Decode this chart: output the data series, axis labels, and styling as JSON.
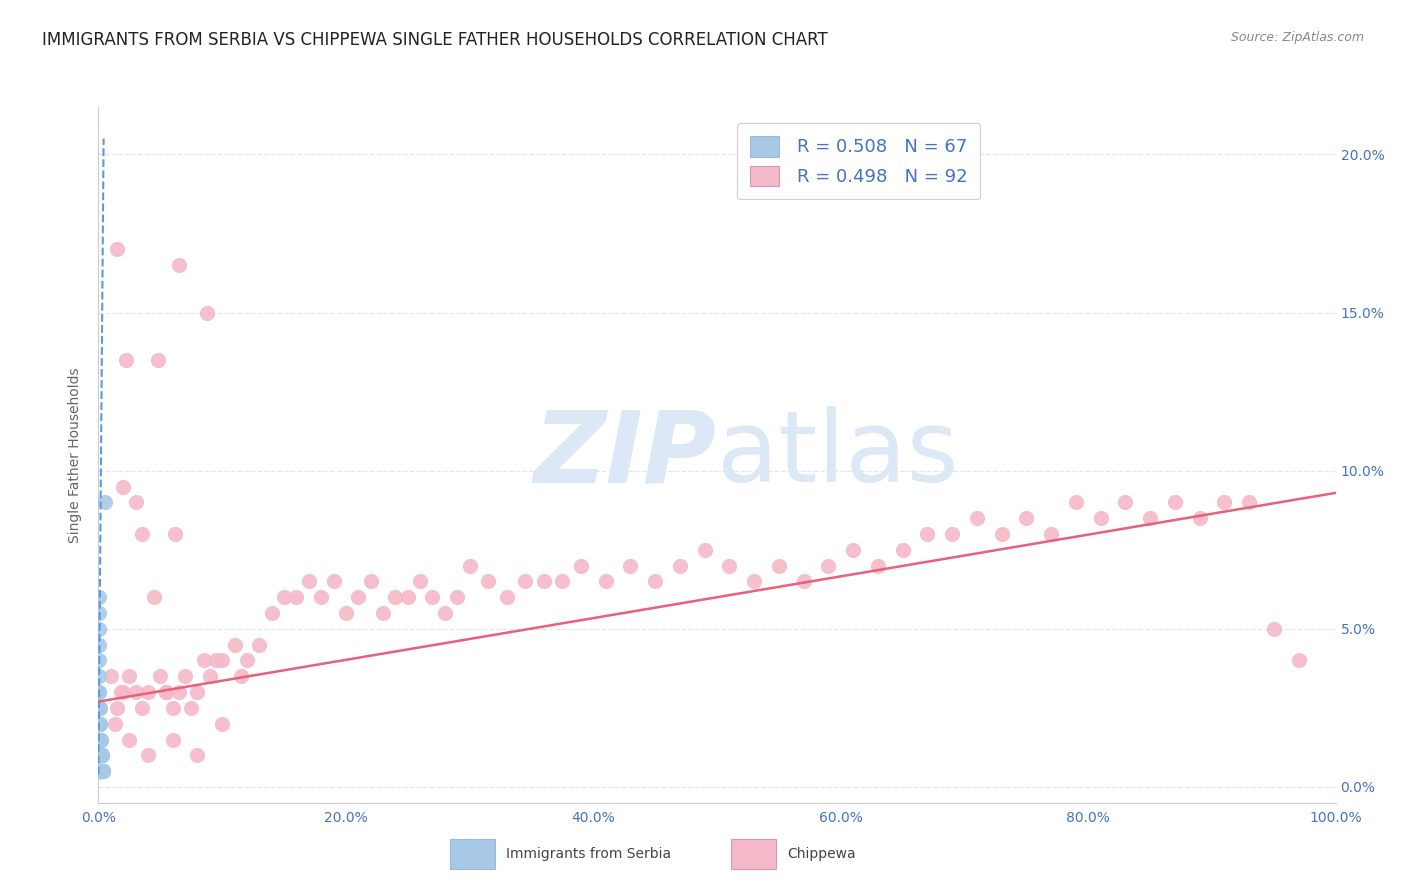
{
  "title": "IMMIGRANTS FROM SERBIA VS CHIPPEWA SINGLE FATHER HOUSEHOLDS CORRELATION CHART",
  "source": "Source: ZipAtlas.com",
  "ylabel": "Single Father Households",
  "legend_r": [
    0.508,
    0.498
  ],
  "legend_n": [
    67,
    92
  ],
  "serbia_color": "#a8c8e8",
  "serbia_edge_color": "#7aaad0",
  "chippewa_color": "#f5b8c8",
  "chippewa_edge_color": "#e890a8",
  "serbia_line_color": "#5b9bd5",
  "chippewa_line_color": "#e8607a",
  "watermark_zip": "ZIP",
  "watermark_atlas": "atlas",
  "watermark_color": "#dce8f5",
  "xlim": [
    0.0,
    1.0
  ],
  "ylim": [
    -0.005,
    0.215
  ],
  "yticks": [
    0.0,
    0.05,
    0.1,
    0.15,
    0.2
  ],
  "xticks": [
    0.0,
    0.2,
    0.4,
    0.6,
    0.8,
    1.0
  ],
  "serbia_x": [
    0.0002,
    0.0002,
    0.0002,
    0.0003,
    0.0003,
    0.0003,
    0.0003,
    0.0004,
    0.0004,
    0.0004,
    0.0005,
    0.0005,
    0.0005,
    0.0006,
    0.0006,
    0.0007,
    0.0007,
    0.0008,
    0.0008,
    0.0009,
    0.001,
    0.001,
    0.0012,
    0.0012,
    0.0013,
    0.0015,
    0.0015,
    0.0018,
    0.002,
    0.002,
    0.0022,
    0.0025,
    0.0025,
    0.0028,
    0.003,
    0.003,
    0.0033,
    0.0035,
    0.0038,
    0.004,
    0.0003,
    0.0004,
    0.0005,
    0.0006,
    0.0007,
    0.0008,
    0.0009,
    0.001,
    0.0012,
    0.0015,
    0.0018,
    0.002,
    0.0025,
    0.003,
    0.0001,
    0.0001,
    0.0001,
    0.0001,
    0.0001,
    0.0001,
    0.0001,
    0.0001,
    0.0001,
    0.0001,
    0.0001,
    0.0001,
    0.005
  ],
  "serbia_y": [
    0.005,
    0.01,
    0.015,
    0.005,
    0.01,
    0.015,
    0.02,
    0.005,
    0.01,
    0.02,
    0.005,
    0.01,
    0.02,
    0.005,
    0.01,
    0.005,
    0.015,
    0.005,
    0.015,
    0.005,
    0.005,
    0.01,
    0.005,
    0.01,
    0.005,
    0.005,
    0.01,
    0.005,
    0.005,
    0.01,
    0.005,
    0.005,
    0.01,
    0.005,
    0.005,
    0.01,
    0.005,
    0.005,
    0.005,
    0.005,
    0.025,
    0.025,
    0.03,
    0.025,
    0.02,
    0.02,
    0.02,
    0.025,
    0.02,
    0.015,
    0.015,
    0.015,
    0.01,
    0.01,
    0.005,
    0.01,
    0.015,
    0.02,
    0.025,
    0.03,
    0.035,
    0.04,
    0.045,
    0.05,
    0.055,
    0.06,
    0.09
  ],
  "chippewa_x": [
    0.01,
    0.015,
    0.018,
    0.02,
    0.025,
    0.03,
    0.035,
    0.04,
    0.05,
    0.055,
    0.06,
    0.065,
    0.07,
    0.08,
    0.085,
    0.09,
    0.095,
    0.1,
    0.11,
    0.115,
    0.12,
    0.13,
    0.14,
    0.15,
    0.16,
    0.17,
    0.18,
    0.19,
    0.2,
    0.21,
    0.22,
    0.23,
    0.24,
    0.25,
    0.26,
    0.27,
    0.28,
    0.29,
    0.3,
    0.315,
    0.33,
    0.345,
    0.36,
    0.375,
    0.39,
    0.41,
    0.43,
    0.45,
    0.47,
    0.49,
    0.51,
    0.53,
    0.55,
    0.57,
    0.59,
    0.61,
    0.63,
    0.65,
    0.67,
    0.69,
    0.71,
    0.73,
    0.75,
    0.77,
    0.79,
    0.81,
    0.83,
    0.85,
    0.87,
    0.89,
    0.91,
    0.93,
    0.95,
    0.97,
    0.013,
    0.025,
    0.04,
    0.06,
    0.08,
    0.1,
    0.02,
    0.035,
    0.055,
    0.075,
    0.03,
    0.045,
    0.015,
    0.022,
    0.048,
    0.065,
    0.088,
    0.062
  ],
  "chippewa_y": [
    0.035,
    0.025,
    0.03,
    0.03,
    0.035,
    0.03,
    0.025,
    0.03,
    0.035,
    0.03,
    0.025,
    0.03,
    0.035,
    0.03,
    0.04,
    0.035,
    0.04,
    0.04,
    0.045,
    0.035,
    0.04,
    0.045,
    0.055,
    0.06,
    0.06,
    0.065,
    0.06,
    0.065,
    0.055,
    0.06,
    0.065,
    0.055,
    0.06,
    0.06,
    0.065,
    0.06,
    0.055,
    0.06,
    0.07,
    0.065,
    0.06,
    0.065,
    0.065,
    0.065,
    0.07,
    0.065,
    0.07,
    0.065,
    0.07,
    0.075,
    0.07,
    0.065,
    0.07,
    0.065,
    0.07,
    0.075,
    0.07,
    0.075,
    0.08,
    0.08,
    0.085,
    0.08,
    0.085,
    0.08,
    0.09,
    0.085,
    0.09,
    0.085,
    0.09,
    0.085,
    0.09,
    0.09,
    0.05,
    0.04,
    0.02,
    0.015,
    0.01,
    0.015,
    0.01,
    0.02,
    0.095,
    0.08,
    0.03,
    0.025,
    0.09,
    0.06,
    0.17,
    0.135,
    0.135,
    0.165,
    0.15,
    0.08
  ],
  "serbia_trend_x": [
    0.0,
    0.0042
  ],
  "serbia_trend_y": [
    0.004,
    0.205
  ],
  "chippewa_trend_x": [
    0.0,
    1.0
  ],
  "chippewa_trend_y": [
    0.027,
    0.093
  ],
  "background_color": "#ffffff",
  "grid_color": "#dde8f2",
  "tick_color": "#4472c4",
  "axis_label_color": "#666666",
  "title_color": "#222222",
  "source_color": "#888888",
  "title_fontsize": 12,
  "axis_fontsize": 10,
  "legend_fontsize": 13,
  "legend_r_color": "#4472c4",
  "legend_n_color": "#e8607a"
}
